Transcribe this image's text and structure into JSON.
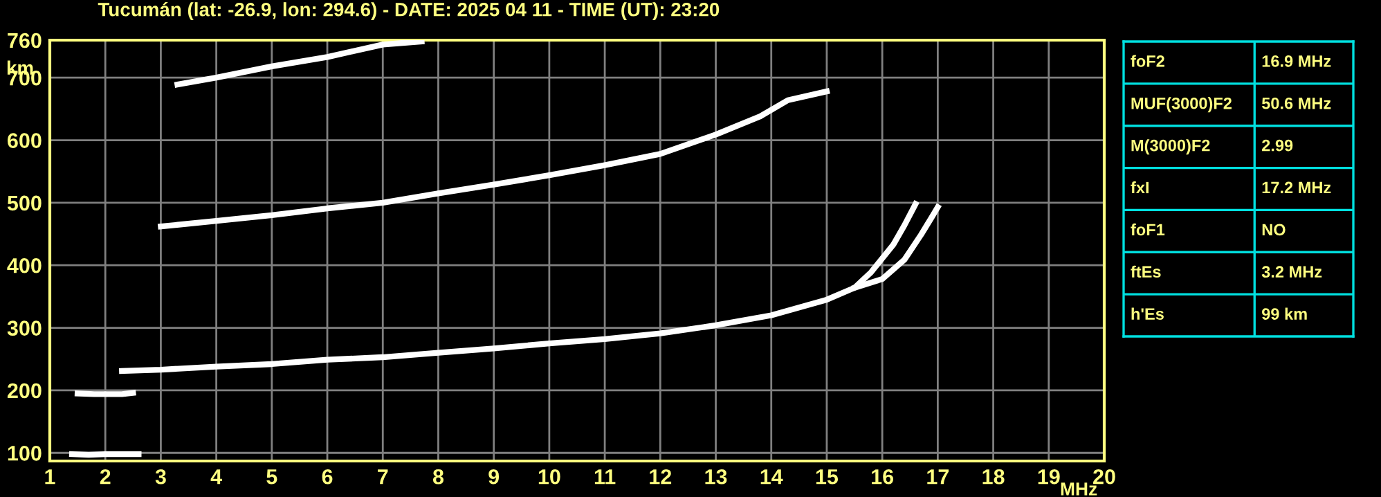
{
  "chart_data": [
    {
      "type": "line",
      "title": "Tucumán (lat: -26.9, lon: 294.6) - DATE: 2025 04 11 - TIME (UT): 23:20",
      "xlabel": "MHz",
      "ylabel": "km",
      "xlim": [
        1,
        20
      ],
      "ylim": [
        87,
        760
      ],
      "xticks": [
        1,
        2,
        3,
        4,
        5,
        6,
        7,
        8,
        9,
        10,
        11,
        12,
        13,
        14,
        15,
        16,
        17,
        18,
        19,
        20
      ],
      "yticks": [
        100,
        200,
        300,
        400,
        500,
        600,
        700,
        760
      ],
      "grid": true,
      "line_style": "solid",
      "marker": "none",
      "legend": false,
      "series": [
        {
          "color": "#ffffff",
          "x": [
            1.4,
            1.7,
            2.0,
            2.3,
            2.6
          ],
          "values": [
            98,
            97,
            98,
            98,
            98
          ]
        },
        {
          "color": "#ffffff",
          "x": [
            1.5,
            1.8,
            2.0,
            2.3,
            2.5
          ],
          "values": [
            195,
            194,
            194,
            194,
            196
          ]
        },
        {
          "color": "#ffffff",
          "x": [
            2.3,
            3,
            4,
            5,
            6,
            7,
            8,
            9,
            10,
            11,
            12,
            13,
            14,
            15,
            15.5,
            15.8,
            16.2,
            16.4,
            16.6
          ],
          "values": [
            231,
            233,
            238,
            242,
            249,
            253,
            260,
            267,
            275,
            282,
            291,
            304,
            320,
            345,
            364,
            389,
            433,
            464,
            498
          ]
        },
        {
          "color": "#ffffff",
          "x": [
            15.5,
            16.0,
            16.4,
            16.7,
            16.9,
            17.0
          ],
          "values": [
            364,
            378,
            409,
            449,
            478,
            493
          ]
        },
        {
          "color": "#ffffff",
          "x": [
            3.0,
            4,
            5,
            6,
            7,
            8,
            9,
            10,
            11,
            12,
            13,
            13.8,
            14.3,
            15
          ],
          "values": [
            462,
            471,
            480,
            491,
            500,
            515,
            529,
            544,
            560,
            578,
            609,
            638,
            664,
            678
          ]
        },
        {
          "color": "#ffffff",
          "x": [
            3.3,
            4,
            5,
            6,
            7,
            7.7
          ],
          "values": [
            689,
            700,
            718,
            733,
            753,
            758
          ]
        }
      ]
    },
    {
      "type": "other",
      "annotations": [
        "foF2",
        "16.9 MHz",
        "MUF(3000)F2",
        "50.6 MHz",
        "M(3000)F2",
        "2.99",
        "fxI",
        "17.2 MHz",
        "foF1",
        "NO",
        "ftEs",
        "3.2 MHz",
        "h'Es",
        "99 km"
      ]
    }
  ]
}
